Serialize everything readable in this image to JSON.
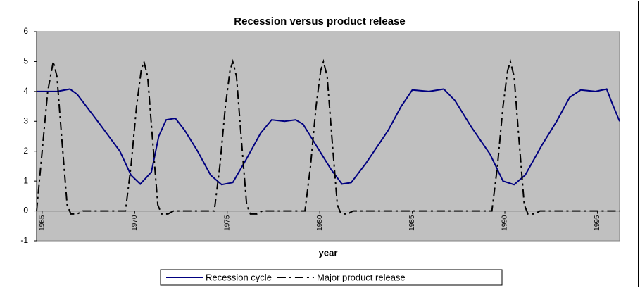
{
  "chart_data": {
    "type": "line",
    "title": "Recession versus product release",
    "x_label": "year",
    "xlim": [
      1964.7,
      1996.2
    ],
    "xticks": [
      1965,
      1970,
      1975,
      1980,
      1985,
      1990,
      1995
    ],
    "ylim": [
      -1,
      6
    ],
    "yticks": [
      -1,
      0,
      1,
      2,
      3,
      4,
      5,
      6
    ],
    "legend": "bottom",
    "series": [
      {
        "name": "Recession cycle",
        "color": "#000080",
        "dash": "solid",
        "x": [
          1964.7,
          1965.8,
          1966.5,
          1966.9,
          1968.0,
          1969.2,
          1969.8,
          1970.3,
          1970.9,
          1971.3,
          1971.7,
          1972.2,
          1972.7,
          1973.4,
          1974.1,
          1974.7,
          1975.3,
          1976.0,
          1976.8,
          1977.4,
          1978.1,
          1978.7,
          1979.1,
          1979.8,
          1980.6,
          1981.2,
          1981.7,
          1982.5,
          1983.7,
          1984.4,
          1985.0,
          1985.9,
          1986.7,
          1987.3,
          1988.2,
          1989.2,
          1989.9,
          1990.5,
          1991.1,
          1992.0,
          1992.8,
          1993.5,
          1994.1,
          1994.9,
          1995.5,
          1995.8,
          1996.2
        ],
        "values": [
          4,
          4,
          4.08,
          3.9,
          3.0,
          2.0,
          1.2,
          0.9,
          1.3,
          2.5,
          3.05,
          3.1,
          2.7,
          2.0,
          1.2,
          0.88,
          0.95,
          1.7,
          2.6,
          3.05,
          3.0,
          3.05,
          2.9,
          2.2,
          1.4,
          0.9,
          0.95,
          1.6,
          2.7,
          3.5,
          4.05,
          4.0,
          4.08,
          3.7,
          2.8,
          1.9,
          1.0,
          0.88,
          1.2,
          2.2,
          3.0,
          3.8,
          4.05,
          4.0,
          4.08,
          3.6,
          3.0
        ]
      },
      {
        "name": "Major product release",
        "color": "#000000",
        "dash": "dashdot",
        "x": [
          1964.7,
          1965.0,
          1965.3,
          1965.6,
          1965.8,
          1966.05,
          1966.35,
          1966.55,
          1966.9,
          1967.2,
          1969.5,
          1969.8,
          1970.1,
          1970.35,
          1970.5,
          1970.7,
          1970.95,
          1971.25,
          1971.45,
          1971.8,
          1972.1,
          1974.3,
          1974.6,
          1974.9,
          1975.15,
          1975.3,
          1975.5,
          1975.75,
          1976.05,
          1976.25,
          1976.6,
          1976.9,
          1979.2,
          1979.5,
          1979.8,
          1980.05,
          1980.2,
          1980.4,
          1980.65,
          1980.95,
          1981.15,
          1981.5,
          1981.8,
          1989.3,
          1989.6,
          1989.9,
          1990.15,
          1990.3,
          1990.5,
          1990.75,
          1991.05,
          1991.25,
          1991.6,
          1991.9,
          1996.2
        ],
        "values": [
          0,
          2.0,
          4.0,
          5,
          4.5,
          2.5,
          0.2,
          -0.1,
          -0.1,
          0,
          0,
          1.5,
          3.5,
          4.7,
          5,
          4.5,
          2.5,
          0.2,
          -0.1,
          -0.1,
          0,
          0,
          1.5,
          3.5,
          4.7,
          5,
          4.5,
          2.5,
          0.2,
          -0.1,
          -0.1,
          0,
          0,
          1.5,
          3.5,
          4.7,
          5,
          4.5,
          2.5,
          0.2,
          -0.1,
          -0.1,
          0,
          0,
          1.5,
          3.5,
          4.7,
          5,
          4.5,
          2.5,
          0.2,
          -0.1,
          -0.1,
          0,
          0
        ]
      }
    ]
  }
}
